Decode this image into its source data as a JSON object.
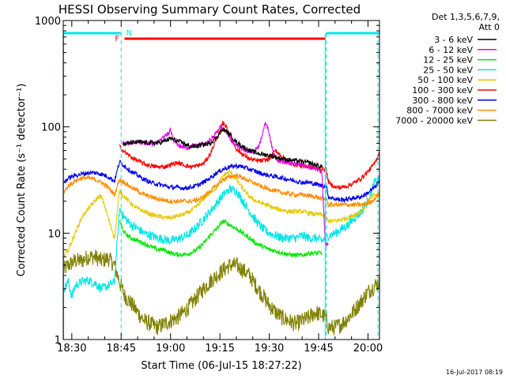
{
  "chart_data": {
    "type": "line",
    "title": "HESSI Observing Summary Count Rates, Corrected",
    "xlabel": "Start Time (06-Jul-15 18:27:22)",
    "ylabel": "Corrected Count Rate (s⁻¹ detector⁻¹)",
    "x_tick_labels": [
      "18:30",
      "18:45",
      "19:00",
      "19:15",
      "19:30",
      "19:45",
      "20:00"
    ],
    "x_tick_minutes": [
      30,
      45,
      60,
      75,
      90,
      105,
      120
    ],
    "xlim_minutes": [
      27.4,
      123.5
    ],
    "y_scale": "log",
    "ylim": [
      1,
      1000
    ],
    "y_tick_labels": [
      "1",
      "10",
      "100",
      "1000"
    ],
    "legend_header": [
      "Det 1,3,5,6,7,9,",
      "Att 0"
    ],
    "timestamp": "16-Jul-2017 08:19",
    "night_intervals_minutes": [
      [
        27.4,
        45.0
      ],
      [
        107.3,
        123.5
      ]
    ],
    "flag_markers": [
      {
        "label": "N",
        "color": "#00e5e5"
      },
      {
        "label": "F",
        "color": "#ff0000",
        "bar_start_minute": 46,
        "bar_end_minute": 107
      }
    ],
    "series": [
      {
        "name": "3 - 6 keV",
        "color": "#000000",
        "x": [
          45.5,
          47,
          50,
          53,
          56,
          58,
          60,
          62,
          64,
          66,
          68,
          70,
          72,
          74,
          76,
          78,
          80,
          82,
          84,
          86,
          88,
          90,
          92,
          94,
          96,
          98,
          100,
          102,
          104,
          106
        ],
        "y": [
          68,
          70,
          72,
          71,
          70,
          73,
          78,
          74,
          70,
          65,
          66,
          68,
          70,
          80,
          95,
          85,
          72,
          65,
          60,
          57,
          55,
          54,
          52,
          50,
          49,
          48,
          47,
          46,
          44,
          42
        ]
      },
      {
        "name": "6 - 12 keV",
        "color": "#e600e6",
        "x": [
          45.5,
          48,
          50,
          53,
          55,
          57,
          59,
          60,
          61,
          63,
          65,
          67,
          69,
          71,
          73,
          75,
          77,
          79,
          81,
          83,
          85,
          86,
          87,
          88,
          89,
          90,
          91,
          92,
          93,
          95,
          97,
          99,
          101,
          103,
          105,
          106,
          107,
          108
        ],
        "y": [
          70,
          71,
          72,
          70,
          69,
          75,
          85,
          95,
          75,
          65,
          64,
          66,
          68,
          70,
          80,
          100,
          90,
          70,
          64,
          60,
          58,
          62,
          68,
          90,
          110,
          88,
          60,
          52,
          48,
          46,
          45,
          44,
          43,
          41,
          40,
          38,
          8,
          8
        ]
      },
      {
        "name": "12 - 25 keV",
        "color": "#00e600",
        "x": [
          44.5,
          46,
          48,
          50,
          52,
          54,
          56,
          58,
          60,
          62,
          64,
          66,
          68,
          70,
          72,
          74,
          76,
          78,
          80,
          82,
          84,
          86,
          88,
          90,
          92,
          94,
          96,
          98,
          100,
          102,
          104,
          106
        ],
        "y": [
          13,
          10,
          9,
          8.5,
          8,
          7.5,
          7,
          7,
          6.5,
          6.3,
          6.3,
          6.5,
          7,
          8,
          9.5,
          11,
          13,
          12,
          11,
          10,
          9,
          8,
          7.5,
          7,
          6.8,
          6.5,
          6.3,
          6.2,
          6.2,
          6.5,
          6.5,
          6.5
        ]
      },
      {
        "name": "25 - 50 keV",
        "color": "#00e5e5",
        "x": [
          27.5,
          29,
          30,
          31,
          33,
          35,
          37,
          39,
          41,
          43,
          44.5,
          46,
          48,
          50,
          52,
          54,
          56,
          58,
          60,
          62,
          64,
          66,
          68,
          70,
          72,
          74,
          76,
          78,
          80,
          82,
          84,
          86,
          88,
          90,
          92,
          94,
          96,
          98,
          100,
          102,
          104,
          106,
          107.3,
          108,
          110,
          112,
          114,
          116,
          118,
          120,
          122,
          123.5
        ],
        "y": [
          3,
          3.5,
          2.5,
          3.2,
          3.5,
          3.6,
          3.4,
          3,
          3.2,
          3.5,
          17,
          14,
          12,
          11,
          10,
          9.5,
          9,
          8.8,
          8.5,
          8.8,
          9.2,
          10,
          11.5,
          13.5,
          16,
          19,
          23,
          26,
          25,
          20,
          16,
          13,
          11,
          10,
          9.5,
          9,
          9,
          9,
          9.5,
          9,
          9,
          8.5,
          9,
          9.5,
          10,
          11,
          12,
          14,
          16,
          20,
          30,
          32
        ]
      },
      {
        "name": "50 - 100 keV",
        "color": "#e6c800",
        "x": [
          27.5,
          29,
          31,
          33,
          35,
          37,
          38,
          39,
          40,
          41,
          43,
          44.5,
          46,
          48,
          50,
          52,
          54,
          56,
          58,
          60,
          62,
          64,
          66,
          68,
          70,
          72,
          74,
          76,
          78,
          80,
          82,
          84,
          86,
          88,
          90,
          92,
          94,
          96,
          98,
          100,
          102,
          104,
          106,
          107.3,
          108,
          110,
          112,
          114,
          116,
          118,
          120,
          122,
          123.5
        ],
        "y": [
          6,
          7,
          10,
          14,
          17,
          20,
          22,
          22,
          18,
          14,
          9,
          25,
          22,
          19,
          17,
          16,
          15,
          14.5,
          14,
          14,
          14.5,
          15,
          16,
          18,
          21,
          24,
          27,
          35,
          38,
          32,
          26,
          22,
          20,
          19,
          18,
          17,
          16.5,
          16,
          16,
          16,
          15.5,
          15,
          15,
          14,
          13,
          13,
          13.5,
          14,
          15,
          16,
          20,
          23,
          22
        ]
      },
      {
        "name": "100 - 300 keV",
        "color": "#ff0000",
        "x": [
          44.5,
          46,
          48,
          50,
          52,
          54,
          56,
          58,
          60,
          62,
          64,
          66,
          68,
          70,
          72,
          74,
          75,
          76,
          77,
          78,
          79,
          80,
          82,
          84,
          86,
          88,
          90,
          92,
          94,
          96,
          98,
          100,
          102,
          104,
          106,
          107.3,
          108,
          110,
          112,
          114,
          116,
          118,
          120,
          122,
          123.5
        ],
        "y": [
          65,
          58,
          52,
          48,
          45,
          43,
          42,
          42,
          44,
          46,
          44,
          42,
          43,
          45,
          55,
          78,
          90,
          110,
          100,
          85,
          72,
          62,
          55,
          50,
          48,
          48,
          50,
          60,
          52,
          46,
          44,
          43,
          42,
          41,
          40,
          40,
          30,
          27,
          27,
          28,
          30,
          33,
          38,
          45,
          58
        ]
      },
      {
        "name": "300 - 800 keV",
        "color": "#0000e6",
        "x": [
          27.5,
          29,
          31,
          33,
          35,
          37,
          39,
          41,
          43,
          44.5,
          46,
          48,
          50,
          52,
          54,
          56,
          58,
          60,
          62,
          64,
          66,
          68,
          70,
          72,
          74,
          76,
          78,
          80,
          82,
          84,
          86,
          88,
          90,
          92,
          94,
          96,
          98,
          100,
          102,
          104,
          106,
          107.3,
          108,
          110,
          112,
          114,
          116,
          118,
          120,
          122,
          123.5
        ],
        "y": [
          30,
          33,
          35,
          36,
          37,
          37,
          36,
          34,
          31,
          47,
          43,
          38,
          35,
          32,
          30,
          29,
          28,
          27,
          27,
          26.5,
          27,
          28,
          30,
          33,
          37,
          40,
          42,
          43,
          42,
          40,
          38,
          36,
          35,
          34,
          33,
          32,
          31,
          30,
          30,
          29,
          28,
          28,
          22,
          21,
          20.5,
          21,
          21.5,
          22,
          24,
          27,
          30
        ]
      },
      {
        "name": "800 - 7000 keV",
        "color": "#ff8c00",
        "x": [
          27.5,
          29,
          31,
          33,
          35,
          37,
          39,
          41,
          43,
          44.5,
          46,
          48,
          50,
          52,
          54,
          56,
          58,
          60,
          62,
          64,
          66,
          68,
          70,
          72,
          74,
          76,
          78,
          80,
          82,
          84,
          86,
          88,
          90,
          92,
          94,
          96,
          98,
          100,
          102,
          104,
          106,
          107.3,
          108,
          110,
          112,
          114,
          116,
          118,
          120,
          122,
          123.5
        ],
        "y": [
          24,
          28,
          31,
          33,
          33,
          32,
          30,
          27,
          23,
          32,
          30,
          27,
          25,
          23,
          22,
          21,
          20.5,
          20,
          20,
          20,
          20,
          20.5,
          22,
          25,
          28,
          32,
          34,
          35,
          33,
          31,
          29,
          27,
          26,
          25,
          24,
          23.5,
          23,
          23,
          22.5,
          22,
          21,
          21,
          18.5,
          18.5,
          18.5,
          18.5,
          18.5,
          18.5,
          19,
          21,
          24
        ]
      },
      {
        "name": "7000 - 20000 keV",
        "color": "#808000",
        "x": [
          27.5,
          29,
          31,
          33,
          35,
          37,
          39,
          41,
          43,
          44.5,
          46,
          48,
          50,
          52,
          54,
          56,
          58,
          60,
          62,
          64,
          66,
          68,
          70,
          72,
          74,
          76,
          78,
          80,
          82,
          84,
          86,
          88,
          90,
          92,
          94,
          96,
          98,
          100,
          102,
          104,
          106,
          107.3,
          108,
          110,
          112,
          114,
          116,
          118,
          120,
          122,
          123.5
        ],
        "y": [
          4.5,
          5,
          5.5,
          5.5,
          6,
          6,
          5.5,
          5.8,
          5,
          3.5,
          2.6,
          2.2,
          1.8,
          1.5,
          1.4,
          1.3,
          1.4,
          1.5,
          1.6,
          1.8,
          2.1,
          2.5,
          3,
          3.5,
          4,
          4.5,
          5,
          5,
          4.5,
          4,
          3.2,
          2.6,
          2.1,
          1.8,
          1.6,
          1.5,
          1.4,
          1.5,
          1.6,
          1.8,
          1.7,
          1.6,
          1.3,
          1.3,
          1.4,
          1.6,
          1.9,
          2.3,
          2.8,
          3.2,
          3.5
        ]
      }
    ]
  }
}
